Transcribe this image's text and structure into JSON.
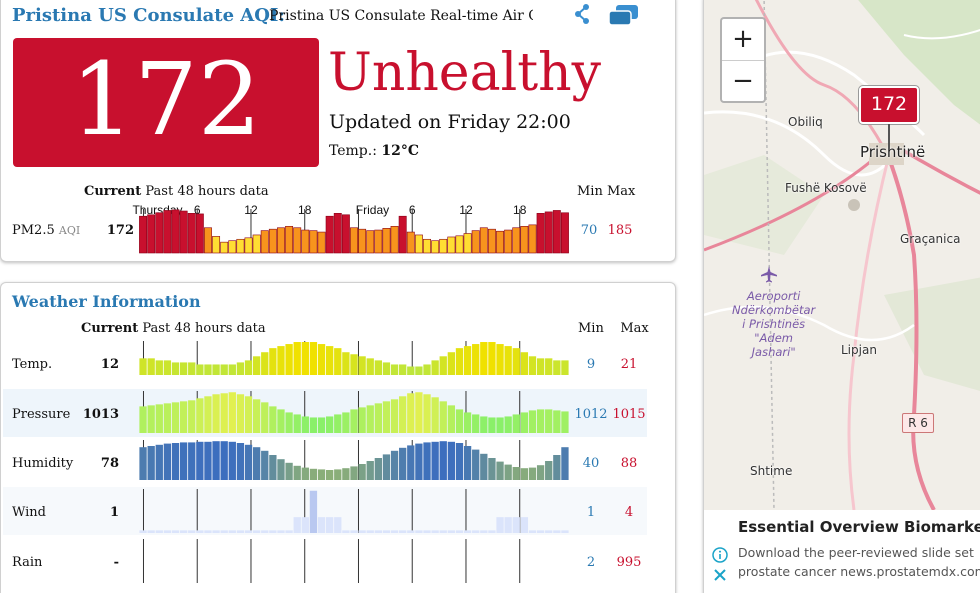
{
  "header": {
    "title": "Pristina US Consulate AQI",
    "colon": ":",
    "subtitle": "Pristina US Consulate Real-time Air Quality Index (AQI)"
  },
  "aqi": {
    "value": "172",
    "status": "Unhealthy",
    "updated": "Updated on Friday 22:00",
    "temp_label": "Temp.:",
    "temp_value": "12°C",
    "colors": {
      "unhealthy": "#c8102e",
      "sensitive": "#f7941d",
      "moderate": "#ffde33"
    }
  },
  "aqi_chart_header": {
    "current": "Current",
    "past": "Past 48 hours data",
    "min": "Min",
    "max": "Max"
  },
  "time_ticks": [
    "Thursday",
    "6",
    "12",
    "18",
    "Friday",
    "6",
    "12",
    "18"
  ],
  "pm25": {
    "name": "PM2.5",
    "unit": "AQI",
    "current": "172",
    "min": "70",
    "max": "185",
    "history": [
      160,
      165,
      172,
      180,
      182,
      178,
      170,
      168,
      120,
      90,
      70,
      75,
      80,
      85,
      95,
      110,
      115,
      120,
      125,
      120,
      112,
      110,
      105,
      160,
      170,
      165,
      120,
      115,
      110,
      112,
      118,
      125,
      160,
      105,
      95,
      80,
      75,
      80,
      88,
      92,
      100,
      110,
      120,
      115,
      108,
      112,
      120,
      125,
      130,
      170,
      175,
      180,
      172
    ]
  },
  "weather": {
    "title": "Weather Information",
    "header": {
      "current": "Current",
      "past": "Past 48 hours data",
      "min": "Min",
      "max": "Max"
    },
    "rows": [
      {
        "name": "Temp.",
        "current": "12",
        "min": "9",
        "max": "21",
        "history": [
          13,
          13,
          12,
          12,
          11,
          11,
          11,
          10,
          10,
          10,
          10,
          10,
          11,
          12,
          14,
          16,
          18,
          19,
          20,
          21,
          21,
          21,
          20,
          19,
          18,
          16,
          15,
          14,
          13,
          12,
          11,
          10,
          10,
          9,
          9,
          10,
          12,
          14,
          16,
          18,
          19,
          20,
          21,
          21,
          20,
          19,
          18,
          16,
          14,
          13,
          13,
          12,
          12
        ]
      },
      {
        "name": "Pressure",
        "current": "1013",
        "min": "1012",
        "max": "1015",
        "history": [
          1013.6,
          1013.7,
          1013.8,
          1013.9,
          1014.0,
          1014.1,
          1014.2,
          1014.4,
          1014.6,
          1014.8,
          1014.9,
          1015.0,
          1014.8,
          1014.6,
          1014.3,
          1014.0,
          1013.6,
          1013.3,
          1013.0,
          1012.8,
          1012.6,
          1012.5,
          1012.5,
          1012.6,
          1012.8,
          1013.0,
          1013.3,
          1013.5,
          1013.7,
          1013.9,
          1014.1,
          1014.3,
          1014.6,
          1014.9,
          1015.0,
          1014.8,
          1014.5,
          1014.1,
          1013.7,
          1013.3,
          1013.0,
          1012.8,
          1012.6,
          1012.5,
          1012.5,
          1012.6,
          1012.8,
          1013.0,
          1013.2,
          1013.3,
          1013.3,
          1013.2,
          1013.1
        ]
      },
      {
        "name": "Humidity",
        "current": "78",
        "min": "40",
        "max": "88",
        "history": [
          78,
          80,
          82,
          84,
          85,
          86,
          86,
          87,
          87,
          88,
          88,
          87,
          85,
          82,
          78,
          72,
          65,
          58,
          52,
          47,
          44,
          42,
          41,
          40,
          41,
          43,
          46,
          50,
          55,
          60,
          66,
          72,
          77,
          81,
          84,
          86,
          87,
          88,
          87,
          85,
          80,
          74,
          67,
          60,
          54,
          49,
          45,
          43,
          44,
          48,
          55,
          65,
          78
        ]
      },
      {
        "name": "Wind",
        "current": "1",
        "min": "1",
        "max": "4",
        "history": [
          1,
          1,
          1,
          1,
          1,
          1,
          1,
          1,
          1,
          1,
          1,
          1,
          1,
          1,
          1,
          1,
          1,
          1,
          1,
          2,
          2,
          4,
          2,
          2,
          2,
          1,
          1,
          1,
          1,
          1,
          1,
          1,
          1,
          1,
          1,
          1,
          1,
          1,
          1,
          1,
          1,
          1,
          1,
          1,
          2,
          2,
          2,
          2,
          1,
          1,
          1,
          1,
          1
        ]
      },
      {
        "name": "Rain",
        "current": "-",
        "min": "2",
        "max": "995",
        "history": []
      }
    ]
  },
  "map": {
    "zoom_in": "+",
    "zoom_out": "−",
    "marker_value": "172",
    "places": {
      "obiliq": "Obiliq",
      "prishtine": "Prishtinë",
      "fushe": "Fushë Kosovë",
      "gracanica": "Graçanica",
      "lipjan": "Lipjan",
      "shtime": "Shtime"
    },
    "airport": [
      "Aeroporti",
      "Ndërkombëtar",
      "i Prishtinës",
      "\"Adem",
      "Jashari\""
    ],
    "road": "R 6"
  },
  "ad": {
    "title": "Essential Overview Biomarkers",
    "line1": "Download the peer-reviewed slide set",
    "line2": "prostate cancer news.prostatemdx.com"
  }
}
